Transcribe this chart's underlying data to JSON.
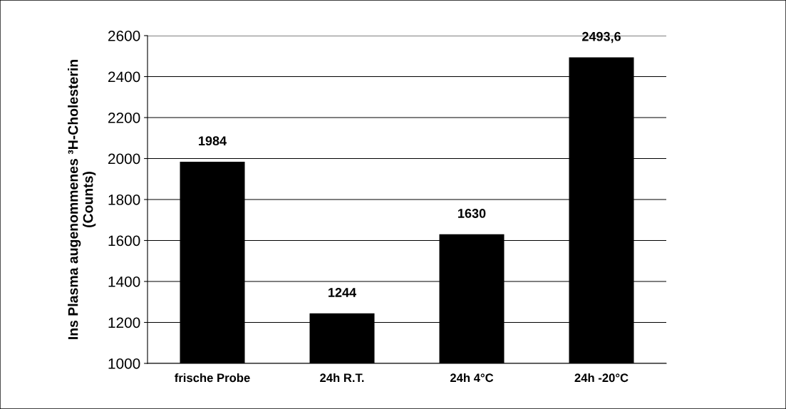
{
  "chart_data": {
    "type": "bar",
    "ylabel": "Ins Plasma augenommenes ³H-Cholesterin\n(Counts)",
    "categories": [
      "frische Probe",
      "24h R.T.",
      "24h 4°C",
      "24h -20°C"
    ],
    "values": [
      1984,
      1244,
      1630,
      2493.6
    ],
    "color": "#000000",
    "value_labels": [
      "1984",
      "1244",
      "1630",
      "2493,6"
    ],
    "ylim": [
      1000,
      2600
    ],
    "yticks": [
      1000,
      1200,
      1400,
      1600,
      1800,
      2000,
      2200,
      2400,
      2600
    ],
    "grid": "y",
    "legend": false
  }
}
